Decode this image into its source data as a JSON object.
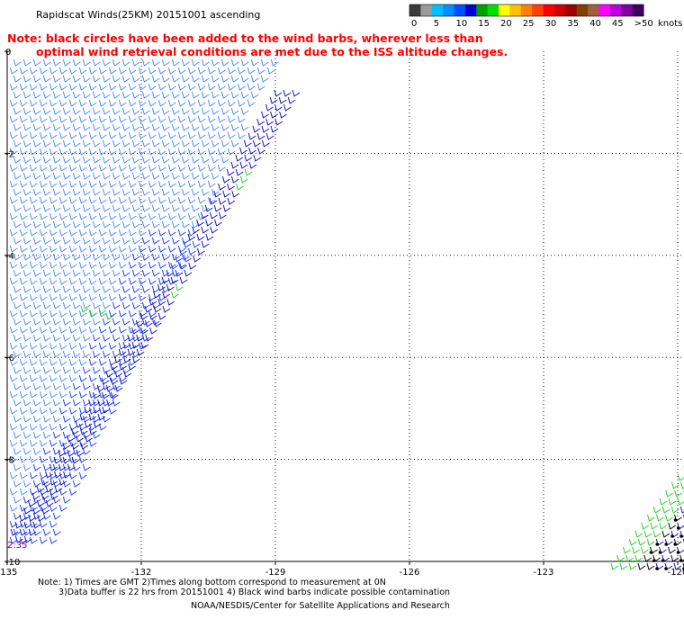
{
  "header": {
    "title": "Rapidscat Winds(25KM) 20151001 ascending",
    "note_line1": "Note: black circles have been added to the wind barbs, wherever less than",
    "note_line2": "optimal wind retrieval conditions are met due to the ISS altitude changes."
  },
  "legend": {
    "unit_label": "knots",
    "bins": [
      {
        "label": "0",
        "color": "#3a3a3a"
      },
      {
        "label": "",
        "color": "#9a9a9a"
      },
      {
        "label": "5",
        "color": "#00c0ff"
      },
      {
        "label": "",
        "color": "#0090ff"
      },
      {
        "label": "10",
        "color": "#0050ff"
      },
      {
        "label": "",
        "color": "#0000d8"
      },
      {
        "label": "15",
        "color": "#00a000"
      },
      {
        "label": "",
        "color": "#00e000"
      },
      {
        "label": "20",
        "color": "#ffff00"
      },
      {
        "label": "",
        "color": "#ffc000"
      },
      {
        "label": "25",
        "color": "#ff8000"
      },
      {
        "label": "",
        "color": "#ff4000"
      },
      {
        "label": "30",
        "color": "#ff0000"
      },
      {
        "label": "",
        "color": "#d00000"
      },
      {
        "label": "35",
        "color": "#a00000"
      },
      {
        "label": "",
        "color": "#804000"
      },
      {
        "label": "40",
        "color": "#a06040"
      },
      {
        "label": "",
        "color": "#ff00ff"
      },
      {
        "label": "45",
        "color": "#c000e0"
      },
      {
        "label": "",
        "color": "#8000a0"
      },
      {
        "label": ">50",
        "color": "#400060"
      }
    ]
  },
  "chart_data": {
    "type": "scatter",
    "subtype": "wind-barb-map",
    "title": "Rapidscat Winds(25KM) 20151001 ascending",
    "xlabel": "",
    "ylabel": "",
    "x_ticks": [
      "-135",
      "-132",
      "-129",
      "-126",
      "-123",
      "-120"
    ],
    "y_ticks": [
      "0",
      "-2",
      "-4",
      "-6",
      "-8",
      "-10"
    ],
    "xlim": [
      -135,
      -120
    ],
    "ylim": [
      -10,
      0
    ],
    "grid": true,
    "pass_time_label": "2:35",
    "colors": {
      "grid": "#000000",
      "barb_light_blue": "#4a8bff",
      "barb_blue": "#1a40ff",
      "barb_dark_blue": "#1010c0",
      "barb_green": "#22d022",
      "barb_black": "#000000",
      "time_label": "#800080"
    },
    "series": [
      {
        "description": "Main swath (western)",
        "speed_knots_range": [
          7,
          14
        ],
        "coverage": "Lon -135 to -129, Lat 0 to -10"
      },
      {
        "description": "Eastern swath (southeast corner)",
        "speed_knots_range": [
          14,
          18
        ],
        "coverage": "Lon -121.5 to -120, Lat -8.4 to -10"
      }
    ]
  },
  "footer": {
    "line1": "Note: 1) Times are GMT 2)Times along bottom correspond to measurement at 0N",
    "line2": "3)Data buffer is 22 hrs from 20151001 4) Black wind barbs indicate possible contamination",
    "line3": "NOAA/NESDIS/Center for Satellite Applications and Research"
  }
}
